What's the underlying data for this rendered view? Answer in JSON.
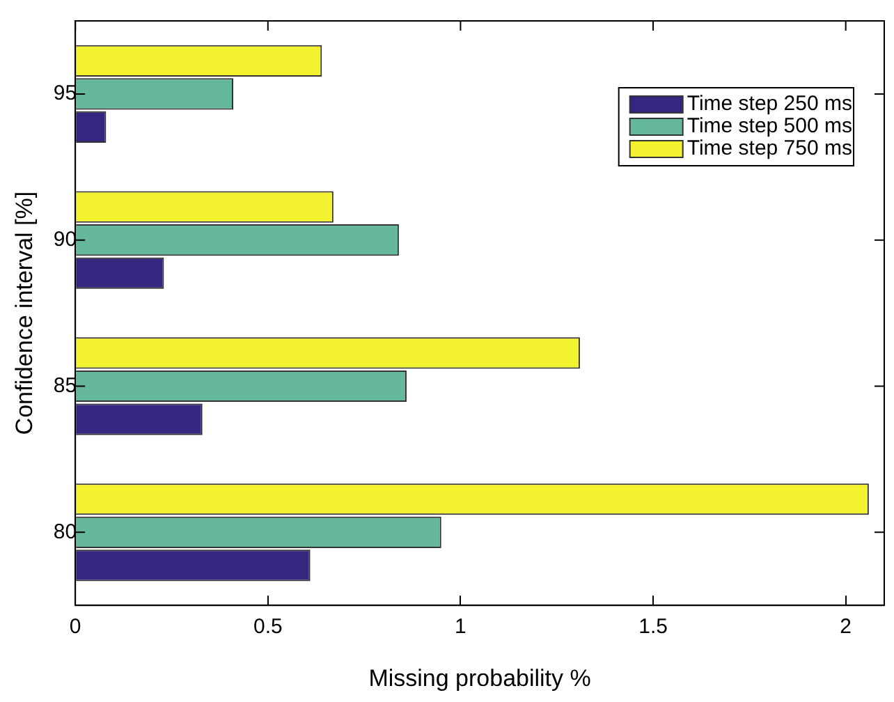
{
  "chart_data": {
    "type": "bar",
    "orientation": "horizontal",
    "xlabel": "Missing probability %",
    "ylabel": "Confidence interval [%]",
    "categories": [
      "95",
      "90",
      "85",
      "80"
    ],
    "series": [
      {
        "name": "Time step 250 ms",
        "color": "#35267f",
        "values": [
          0.08,
          0.23,
          0.33,
          0.61
        ]
      },
      {
        "name": "Time step 500 ms",
        "color": "#66b89a",
        "values": [
          0.41,
          0.84,
          0.86,
          0.95
        ]
      },
      {
        "name": "Time step 750 ms",
        "color": "#f2f22e",
        "values": [
          0.64,
          0.67,
          1.31,
          2.06
        ]
      }
    ],
    "xlim": [
      0,
      2.1
    ],
    "xticks": [
      0,
      0.5,
      1,
      1.5,
      2
    ],
    "grid": false,
    "legend": "top right"
  }
}
